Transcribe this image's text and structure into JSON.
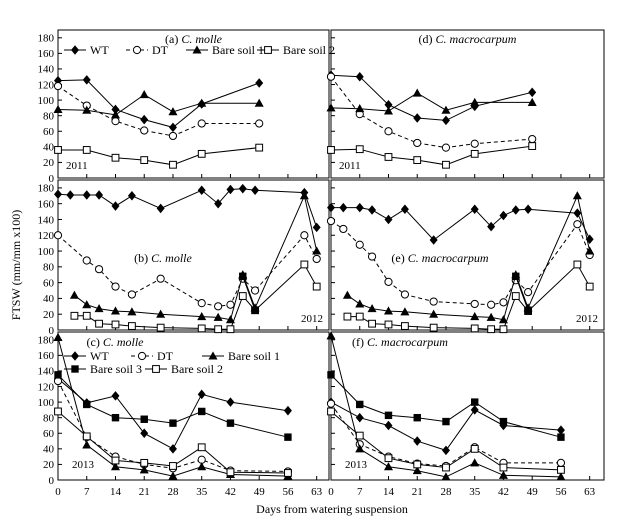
{
  "chart_data": {
    "type": "line",
    "ylabel": "FTSW (mm/mm x100)",
    "xlabel": "Days from watering suspension",
    "x_ticks": [
      "0",
      "7",
      "14",
      "21",
      "28",
      "35",
      "42",
      "49",
      "56",
      "63"
    ],
    "y_ticks": [
      "0",
      "20",
      "40",
      "60",
      "80",
      "100",
      "120",
      "140",
      "160",
      "180"
    ],
    "xlim": [
      0,
      66
    ],
    "ylim": [
      0,
      190
    ],
    "panels": [
      {
        "id": "a",
        "row": 0,
        "col": 0,
        "title_prefix": "(a) ",
        "title_species": "C. molle",
        "year": "2011",
        "legend": true,
        "series": [
          {
            "name": "WT",
            "marker": "diamond",
            "dashed": false,
            "x": [
              0,
              7,
              14,
              21,
              28,
              35,
              49
            ],
            "y": [
              125,
              126,
              88,
              75,
              65,
              95,
              122
            ]
          },
          {
            "name": "DT",
            "marker": "circle",
            "dashed": true,
            "x": [
              0,
              7,
              14,
              21,
              28,
              35,
              49
            ],
            "y": [
              118,
              93,
              73,
              61,
              54,
              70,
              70
            ]
          },
          {
            "name": "Bare soil 1",
            "marker": "triangle",
            "dashed": false,
            "x": [
              0,
              7,
              14,
              21,
              28,
              35,
              49
            ],
            "y": [
              88,
              87,
              81,
              107,
              85,
              96,
              96
            ]
          },
          {
            "name": "Bare soil 2",
            "marker": "square-open",
            "dashed": false,
            "x": [
              0,
              7,
              14,
              21,
              28,
              35,
              49
            ],
            "y": [
              36,
              36,
              26,
              23,
              17,
              31,
              39
            ]
          }
        ]
      },
      {
        "id": "d",
        "row": 0,
        "col": 1,
        "title_prefix": "(d) ",
        "title_species": "C. macrocarpum",
        "year": "2011",
        "legend": false,
        "series": [
          {
            "name": "WT",
            "marker": "diamond",
            "dashed": false,
            "x": [
              0,
              7,
              14,
              21,
              28,
              35,
              49
            ],
            "y": [
              132,
              130,
              94,
              77,
              74,
              92,
              110
            ]
          },
          {
            "name": "DT",
            "marker": "circle",
            "dashed": true,
            "x": [
              0,
              7,
              14,
              21,
              28,
              35,
              49
            ],
            "y": [
              130,
              82,
              60,
              45,
              39,
              44,
              50
            ]
          },
          {
            "name": "Bare soil 1",
            "marker": "triangle",
            "dashed": false,
            "x": [
              0,
              7,
              14,
              21,
              28,
              35,
              49
            ],
            "y": [
              90,
              89,
              86,
              109,
              87,
              97,
              97
            ]
          },
          {
            "name": "Bare soil 2",
            "marker": "square-open",
            "dashed": false,
            "x": [
              0,
              7,
              14,
              21,
              28,
              35,
              49
            ],
            "y": [
              36,
              37,
              27,
              23,
              17,
              31,
              41
            ]
          }
        ]
      },
      {
        "id": "b",
        "row": 1,
        "col": 0,
        "title_prefix": "(b) ",
        "title_species": "C. molle",
        "year": "2012",
        "legend": false,
        "series": [
          {
            "name": "WT",
            "marker": "diamond",
            "dashed": false,
            "x": [
              0,
              3,
              7,
              10,
              14,
              18,
              25,
              35,
              39,
              42,
              45,
              48,
              60,
              63
            ],
            "y": [
              172,
              171,
              171,
              171,
              157,
              170,
              154,
              177,
              160,
              178,
              179,
              177,
              174,
              130
            ]
          },
          {
            "name": "DT",
            "marker": "circle",
            "dashed": true,
            "x": [
              0,
              7,
              10,
              14,
              18,
              25,
              35,
              39,
              42,
              45,
              48,
              60,
              63
            ],
            "y": [
              120,
              88,
              77,
              55,
              45,
              65,
              34,
              30,
              32,
              65,
              50,
              120,
              90
            ]
          },
          {
            "name": "Bare soil 1",
            "marker": "triangle",
            "dashed": false,
            "x": [
              4,
              7,
              10,
              14,
              18,
              25,
              35,
              39,
              42,
              45,
              48,
              60,
              63
            ],
            "y": [
              44,
              32,
              27,
              24,
              23,
              20,
              17,
              16,
              13,
              70,
              28,
              170,
              100
            ]
          },
          {
            "name": "Bare soil 2",
            "marker": "square-open",
            "dashed": false,
            "x": [
              4,
              7,
              10,
              14,
              18,
              25,
              35,
              39,
              42,
              45,
              48,
              60,
              63
            ],
            "y": [
              18,
              18,
              8,
              7,
              5,
              3,
              2,
              1,
              1,
              43,
              25,
              83,
              55
            ]
          },
          {
            "name": "Bare soil 3",
            "marker": "square",
            "dashed": false,
            "x": [
              45,
              48
            ],
            "y": [
              68,
              25
            ]
          }
        ]
      },
      {
        "id": "e",
        "row": 1,
        "col": 1,
        "title_prefix": "(e) ",
        "title_species": "C. macrocarpum",
        "year": "2012",
        "legend": false,
        "series": [
          {
            "name": "WT",
            "marker": "diamond",
            "dashed": false,
            "x": [
              0,
              3,
              7,
              10,
              14,
              18,
              25,
              35,
              39,
              42,
              45,
              48,
              60,
              63
            ],
            "y": [
              155,
              155,
              155,
              152,
              140,
              153,
              114,
              153,
              131,
              145,
              152,
              153,
              148,
              115
            ]
          },
          {
            "name": "DT",
            "marker": "circle",
            "dashed": true,
            "x": [
              0,
              3,
              7,
              10,
              14,
              18,
              25,
              35,
              39,
              42,
              45,
              48,
              60,
              63
            ],
            "y": [
              138,
              128,
              108,
              93,
              61,
              45,
              36,
              33,
              32,
              35,
              63,
              48,
              134,
              95
            ]
          },
          {
            "name": "Bare soil 1",
            "marker": "triangle",
            "dashed": false,
            "x": [
              4,
              7,
              10,
              14,
              18,
              25,
              35,
              39,
              42,
              45,
              48,
              60,
              63
            ],
            "y": [
              44,
              33,
              27,
              24,
              23,
              20,
              17,
              16,
              13,
              70,
              28,
              170,
              100
            ]
          },
          {
            "name": "Bare soil 2",
            "marker": "square-open",
            "dashed": false,
            "x": [
              4,
              7,
              10,
              14,
              18,
              25,
              35,
              39,
              42,
              45,
              48,
              60,
              63
            ],
            "y": [
              17,
              17,
              8,
              7,
              5,
              3,
              2,
              1,
              1,
              43,
              24,
              83,
              55
            ]
          },
          {
            "name": "Bare soil 3",
            "marker": "square",
            "dashed": false,
            "x": [
              45,
              48
            ],
            "y": [
              68,
              25
            ]
          }
        ]
      },
      {
        "id": "c",
        "row": 2,
        "col": 0,
        "title_prefix": "(c) ",
        "title_species": "C. molle",
        "year": "2013",
        "legend": true,
        "series": [
          {
            "name": "WT",
            "marker": "diamond",
            "dashed": false,
            "x": [
              0,
              7,
              14,
              21,
              28,
              35,
              42,
              56
            ],
            "y": [
              130,
              99,
              108,
              60,
              40,
              110,
              100,
              89
            ]
          },
          {
            "name": "DT",
            "marker": "circle",
            "dashed": true,
            "x": [
              0,
              7,
              14,
              21,
              28,
              35,
              42,
              56
            ],
            "y": [
              127,
              55,
              30,
              20,
              15,
              26,
              12,
              11
            ]
          },
          {
            "name": "Bare soil 1",
            "marker": "triangle",
            "dashed": false,
            "x": [
              0,
              7,
              14,
              21,
              28,
              35,
              42,
              56
            ],
            "y": [
              183,
              45,
              17,
              13,
              5,
              17,
              7,
              5
            ]
          },
          {
            "name": "Bare soil 3",
            "marker": "square",
            "dashed": false,
            "x": [
              0,
              7,
              14,
              21,
              28,
              35,
              42,
              56
            ],
            "y": [
              135,
              97,
              80,
              78,
              73,
              88,
              73,
              55
            ]
          },
          {
            "name": "Bare soil 2",
            "marker": "square-open",
            "dashed": false,
            "x": [
              0,
              7,
              14,
              21,
              28,
              35,
              42,
              56
            ],
            "y": [
              88,
              56,
              25,
              22,
              18,
              42,
              10,
              9
            ]
          }
        ]
      },
      {
        "id": "f",
        "row": 2,
        "col": 1,
        "title_prefix": "(f) ",
        "title_species": "C. macrocarpum",
        "year": "2013",
        "legend": false,
        "series": [
          {
            "name": "WT",
            "marker": "diamond",
            "dashed": false,
            "x": [
              0,
              7,
              14,
              21,
              28,
              35,
              42,
              56
            ],
            "y": [
              100,
              80,
              70,
              50,
              38,
              90,
              70,
              64
            ]
          },
          {
            "name": "DT",
            "marker": "circle",
            "dashed": true,
            "x": [
              0,
              7,
              14,
              21,
              28,
              35,
              42,
              56
            ],
            "y": [
              98,
              46,
              30,
              21,
              18,
              42,
              22,
              22
            ]
          },
          {
            "name": "Bare soil 1",
            "marker": "triangle",
            "dashed": false,
            "x": [
              0,
              7,
              14,
              21,
              28,
              35,
              42,
              56
            ],
            "y": [
              185,
              40,
              17,
              12,
              4,
              22,
              6,
              4
            ]
          },
          {
            "name": "Bare soil 3",
            "marker": "square",
            "dashed": false,
            "x": [
              0,
              7,
              14,
              21,
              28,
              35,
              42,
              56
            ],
            "y": [
              135,
              97,
              83,
              80,
              75,
              100,
              75,
              55
            ]
          },
          {
            "name": "Bare soil 2",
            "marker": "square-open",
            "dashed": false,
            "x": [
              0,
              7,
              14,
              21,
              28,
              35,
              42,
              56
            ],
            "y": [
              88,
              57,
              28,
              20,
              16,
              40,
              16,
              13
            ]
          }
        ]
      }
    ],
    "legends": {
      "top": [
        {
          "name": "WT",
          "marker": "diamond",
          "dashed": false
        },
        {
          "name": "DT",
          "marker": "circle",
          "dashed": true
        },
        {
          "name": "Bare soil 1",
          "marker": "triangle",
          "dashed": false
        },
        {
          "name": "Bare soil 2",
          "marker": "square-open",
          "dashed": false
        }
      ],
      "bottom": [
        {
          "name": "WT",
          "marker": "diamond",
          "dashed": false
        },
        {
          "name": "DT",
          "marker": "circle",
          "dashed": true
        },
        {
          "name": "Bare soil 1",
          "marker": "triangle",
          "dashed": false
        },
        {
          "name": "Bare soil 3",
          "marker": "square",
          "dashed": false
        },
        {
          "name": "Bare soil 2",
          "marker": "square-open",
          "dashed": false
        }
      ]
    }
  }
}
